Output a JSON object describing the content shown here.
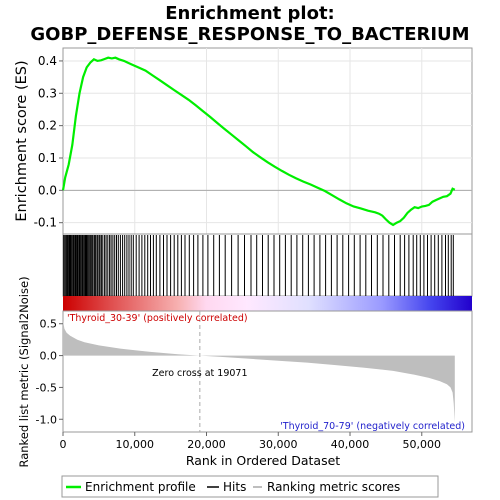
{
  "chart_data": {
    "type": "line",
    "title": "Enrichment plot:\nGOBP_DEFENSE_RESPONSE_TO_BACTERIUM",
    "title_lines": [
      "Enrichment plot:",
      "GOBP_DEFENSE_RESPONSE_TO_BACTERIUM"
    ],
    "colors": {
      "es_line": "#00ee00",
      "hits": "#000000",
      "metric_fill": "#bebebe",
      "positive_label": "#cc0000",
      "negative_label": "#2222cc",
      "zero_line": "#aaaaaa",
      "high_rank": "#cc0000",
      "low_rank": "#2200cc"
    },
    "x_axis": {
      "label": "Rank in Ordered Dataset",
      "range": [
        0,
        57000
      ],
      "ticks": [
        0,
        10000,
        20000,
        30000,
        40000,
        50000
      ],
      "tick_labels": [
        "0",
        "10,000",
        "20,000",
        "30,000",
        "40,000",
        "50,000"
      ],
      "dataset_size": 54600
    },
    "es_panel": {
      "ylabel": "Enrichment score (ES)",
      "ylim": [
        -0.135,
        0.44
      ],
      "ticks": [
        -0.1,
        0.0,
        0.1,
        0.2,
        0.3,
        0.4
      ],
      "tick_labels": [
        "-0.1",
        "0.0",
        "0.1",
        "0.2",
        "0.3",
        "0.4"
      ],
      "grid": true,
      "x": [
        0,
        300,
        800,
        1300,
        1800,
        2300,
        2800,
        3300,
        3800,
        4300,
        4800,
        5300,
        5800,
        6300,
        6800,
        7300,
        7800,
        8500,
        9500,
        10500,
        11500,
        12500,
        13500,
        14500,
        15500,
        16500,
        17500,
        18500,
        19500,
        20500,
        21500,
        22500,
        23500,
        24500,
        25500,
        26500,
        27500,
        28500,
        29500,
        30500,
        31500,
        32500,
        33500,
        34500,
        35500,
        36500,
        37500,
        38500,
        39500,
        40500,
        41500,
        42500,
        43500,
        44000,
        44500,
        45000,
        45500,
        46000,
        46500,
        47000,
        47500,
        48000,
        48500,
        49000,
        49500,
        50000,
        50500,
        51000,
        51500,
        52000,
        52500,
        53000,
        53500,
        54000,
        54300,
        54600
      ],
      "y": [
        0.0,
        0.04,
        0.08,
        0.14,
        0.23,
        0.3,
        0.35,
        0.38,
        0.395,
        0.405,
        0.4,
        0.402,
        0.406,
        0.41,
        0.408,
        0.41,
        0.405,
        0.4,
        0.39,
        0.38,
        0.37,
        0.355,
        0.34,
        0.325,
        0.31,
        0.295,
        0.28,
        0.263,
        0.245,
        0.227,
        0.208,
        0.19,
        0.172,
        0.154,
        0.136,
        0.118,
        0.102,
        0.087,
        0.073,
        0.06,
        0.048,
        0.037,
        0.027,
        0.018,
        0.008,
        -0.002,
        -0.015,
        -0.028,
        -0.04,
        -0.05,
        -0.056,
        -0.063,
        -0.068,
        -0.072,
        -0.078,
        -0.09,
        -0.1,
        -0.107,
        -0.1,
        -0.095,
        -0.085,
        -0.07,
        -0.06,
        -0.052,
        -0.055,
        -0.05,
        -0.048,
        -0.045,
        -0.035,
        -0.03,
        -0.025,
        -0.02,
        -0.018,
        -0.01,
        0.005,
        0.002
      ]
    },
    "hits_panel": {
      "hit_ranks": [
        100,
        250,
        400,
        550,
        650,
        800,
        900,
        1050,
        1200,
        1300,
        1450,
        1550,
        1700,
        1800,
        1950,
        2050,
        2200,
        2300,
        2450,
        2550,
        2700,
        2800,
        2950,
        3100,
        3200,
        3350,
        3500,
        3650,
        3800,
        3950,
        4100,
        4300,
        4450,
        4600,
        4800,
        5000,
        5150,
        5350,
        5550,
        5800,
        6000,
        6250,
        6500,
        6700,
        6950,
        7200,
        7450,
        7700,
        8000,
        8300,
        8600,
        8900,
        9200,
        9500,
        9800,
        10200,
        10600,
        11000,
        11400,
        11800,
        12200,
        12600,
        13000,
        13500,
        14000,
        14500,
        15000,
        15500,
        16000,
        16500,
        17000,
        17600,
        18200,
        18800,
        19500,
        20200,
        21000,
        21800,
        22600,
        23500,
        24400,
        25300,
        26200,
        27000,
        27800,
        28600,
        29400,
        30200,
        31000,
        31800,
        32600,
        33400,
        34200,
        35000,
        35800,
        36600,
        37400,
        38200,
        39000,
        39800,
        40600,
        41400,
        42200,
        43000,
        43800,
        44600,
        45400,
        46200,
        47000,
        47600,
        48200,
        48800,
        49300,
        49800,
        50300,
        50800,
        51300,
        51800,
        52300,
        52800,
        53300,
        53700,
        54100,
        54400
      ]
    },
    "metric_panel": {
      "ylabel": "Ranked list metric (Signal2Noise)",
      "ylim": [
        -1.2,
        0.7
      ],
      "ticks": [
        -1.0,
        -0.5,
        0.0,
        0.5
      ],
      "tick_labels": [
        "-1.0",
        "-0.5",
        "0.0",
        "0.5"
      ],
      "zero_cross": 19071,
      "zero_cross_label": "Zero cross at 19071",
      "positive_label": "'Thyroid_30-39' (positively correlated)",
      "negative_label": "'Thyroid_70-79' (negatively correlated)",
      "x": [
        0,
        200,
        500,
        1000,
        2000,
        3000,
        5000,
        8000,
        12000,
        16000,
        19071,
        22000,
        26000,
        30000,
        34000,
        38000,
        42000,
        46000,
        49000,
        51000,
        52500,
        53500,
        54000,
        54300,
        54450,
        54600
      ],
      "y": [
        0.55,
        0.42,
        0.36,
        0.31,
        0.25,
        0.21,
        0.16,
        0.11,
        0.06,
        0.02,
        0.0,
        -0.02,
        -0.05,
        -0.08,
        -0.11,
        -0.15,
        -0.19,
        -0.24,
        -0.3,
        -0.35,
        -0.4,
        -0.45,
        -0.5,
        -0.58,
        -0.75,
        -1.05
      ]
    },
    "legend": {
      "placement": "bottom",
      "items": [
        {
          "label": "Enrichment profile",
          "color": "#00ee00"
        },
        {
          "label": "Hits",
          "color": "#000000"
        },
        {
          "label": "Ranking metric scores",
          "color": "#bebebe"
        }
      ]
    }
  }
}
